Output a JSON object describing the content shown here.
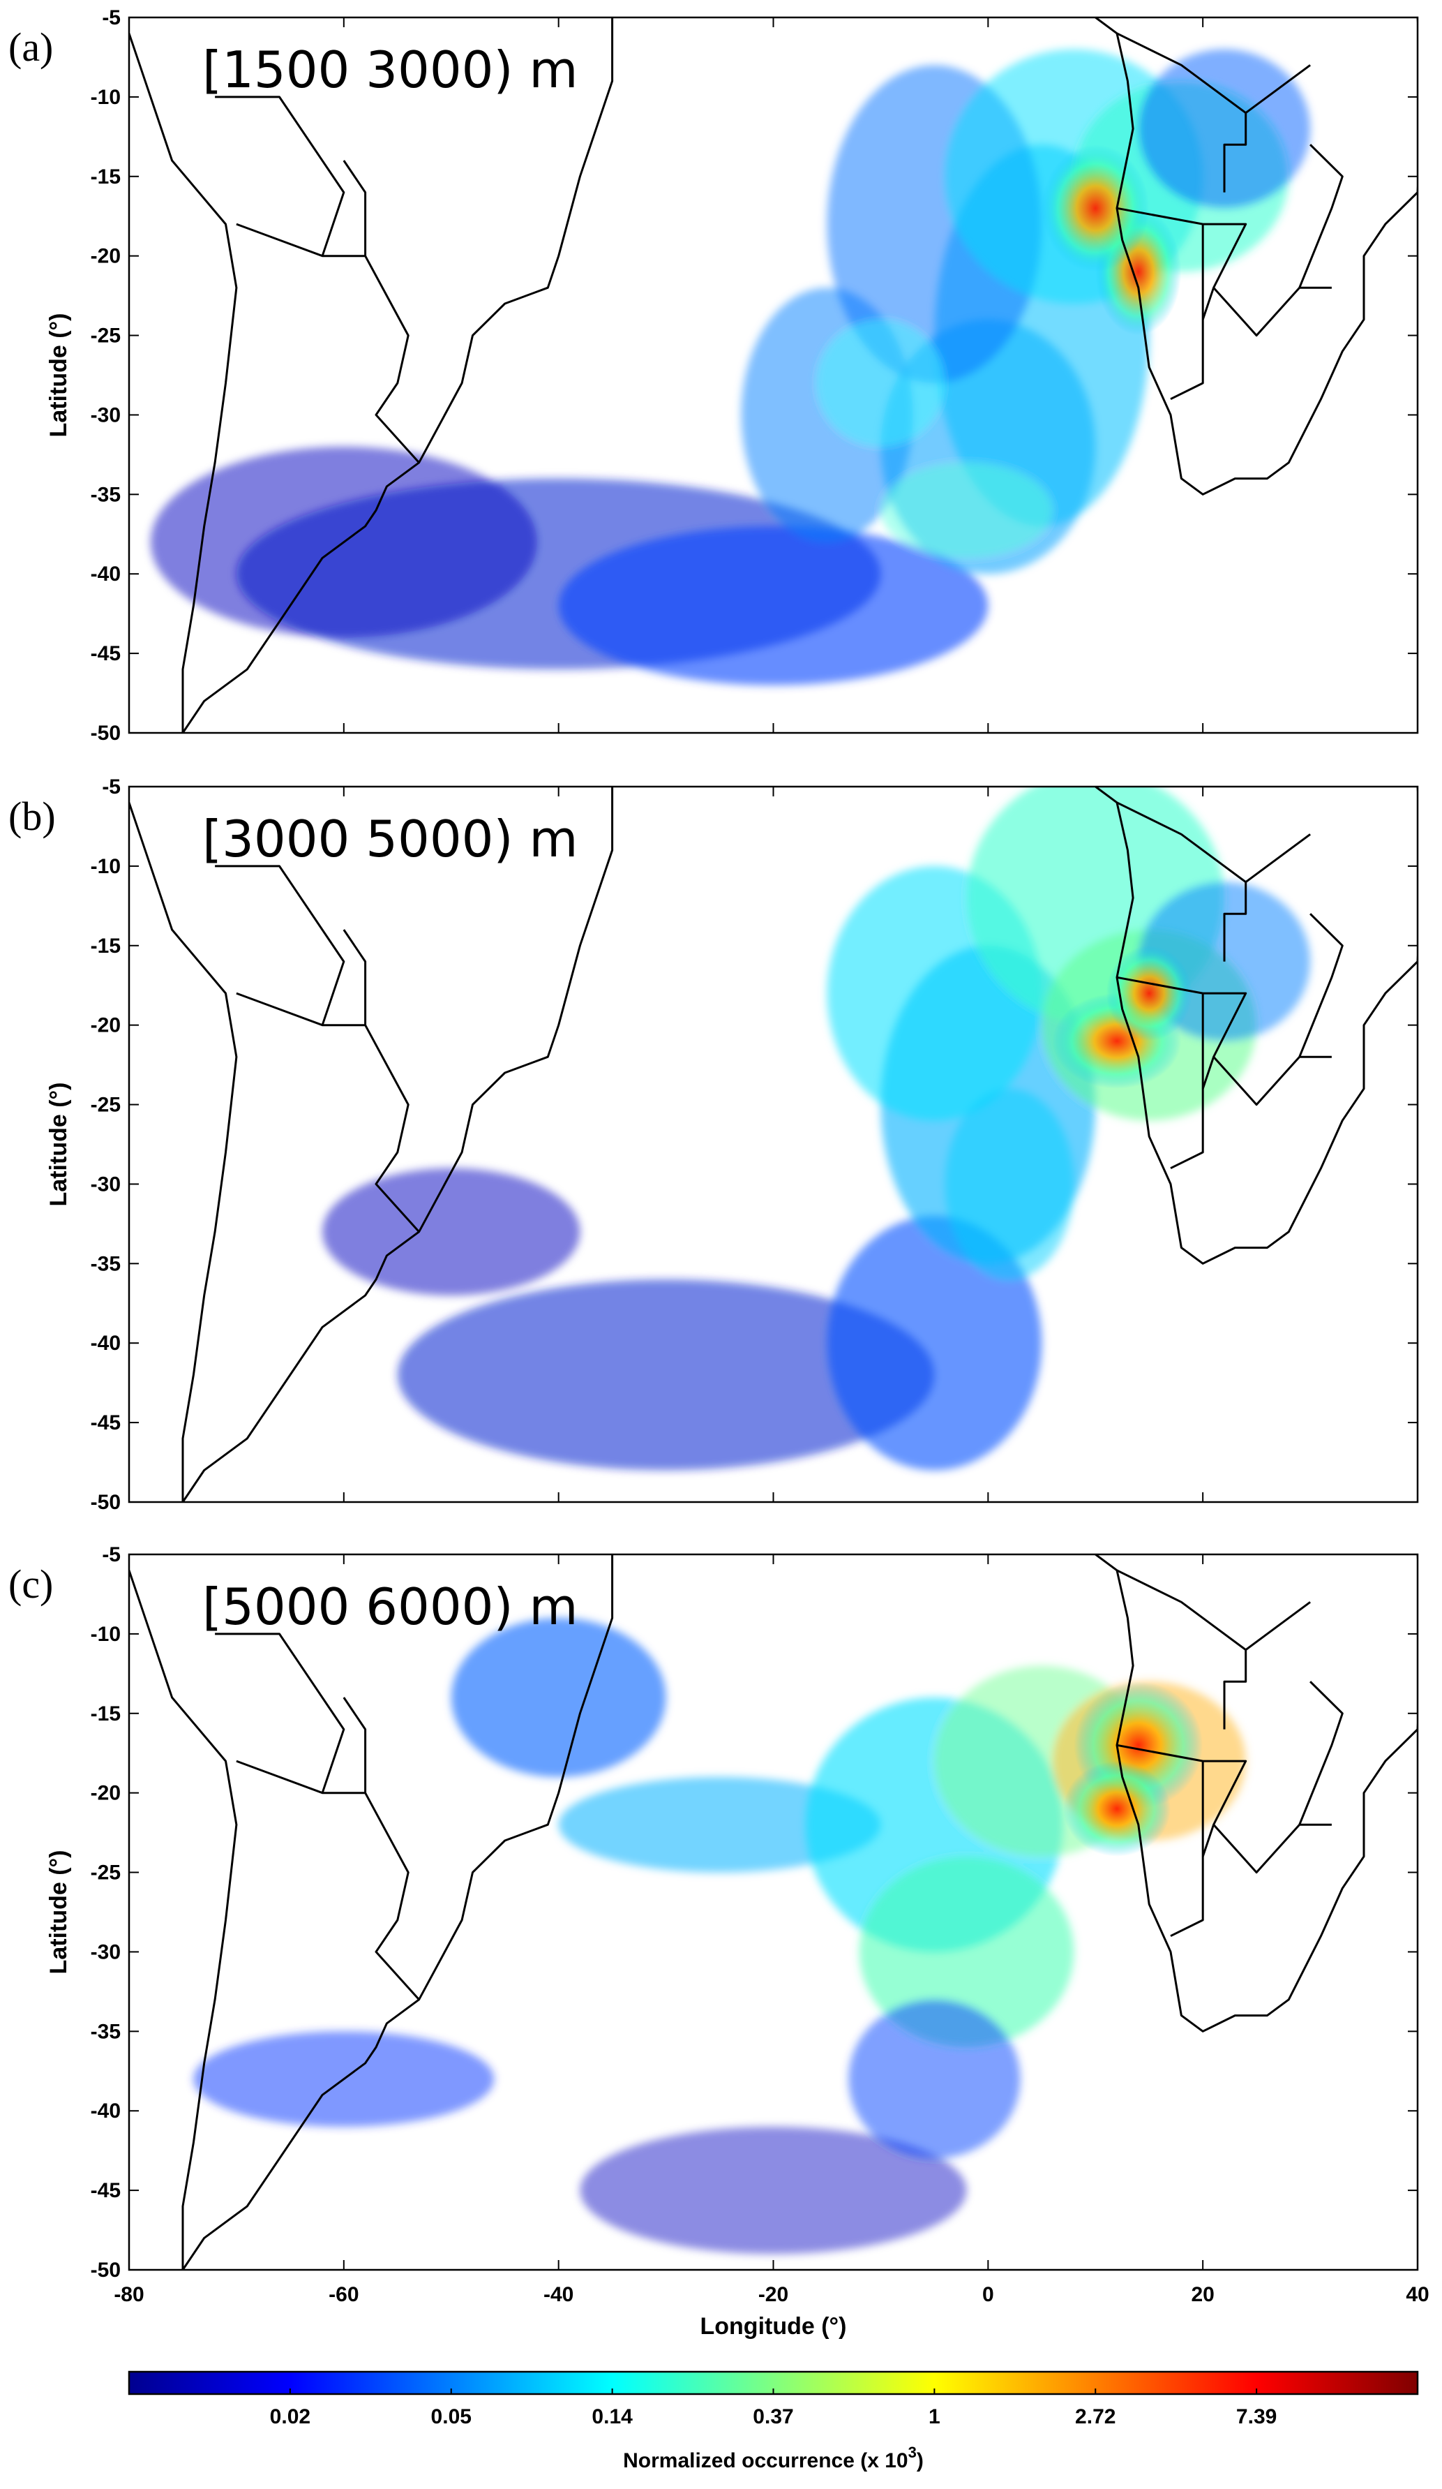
{
  "panels": [
    {
      "letter": "(a)",
      "range_label": "[1500 3000) m"
    },
    {
      "letter": "(b)",
      "range_label": "[3000 5000) m"
    },
    {
      "letter": "(c)",
      "range_label": "[5000 6000) m"
    }
  ],
  "axes": {
    "ylabel": "Latitude (°)",
    "xlabel": "Longitude (°)",
    "lat_ticks": [
      "-5",
      "-10",
      "-15",
      "-20",
      "-25",
      "-30",
      "-35",
      "-40",
      "-45",
      "-50"
    ],
    "lon_ticks": [
      "-80",
      "-60",
      "-40",
      "-20",
      "0",
      "20",
      "40"
    ],
    "lat_range": [
      -50,
      -5
    ],
    "lon_range": [
      -80,
      40
    ]
  },
  "colorbar": {
    "tick_labels": [
      "0.02",
      "0.05",
      "0.14",
      "0.37",
      "1",
      "2.72",
      "7.39"
    ],
    "label_prefix": "Normalized occurrence (x 10",
    "label_exp": "3",
    "label_suffix": ")",
    "colormap": "jet",
    "scale": "log"
  },
  "colors": {
    "low": "#00008f",
    "mid_low": "#0060ff",
    "mid": "#00e0ff",
    "mid_high": "#c0ff40",
    "high": "#ffc000",
    "peak": "#ff2000",
    "max": "#800000"
  }
}
